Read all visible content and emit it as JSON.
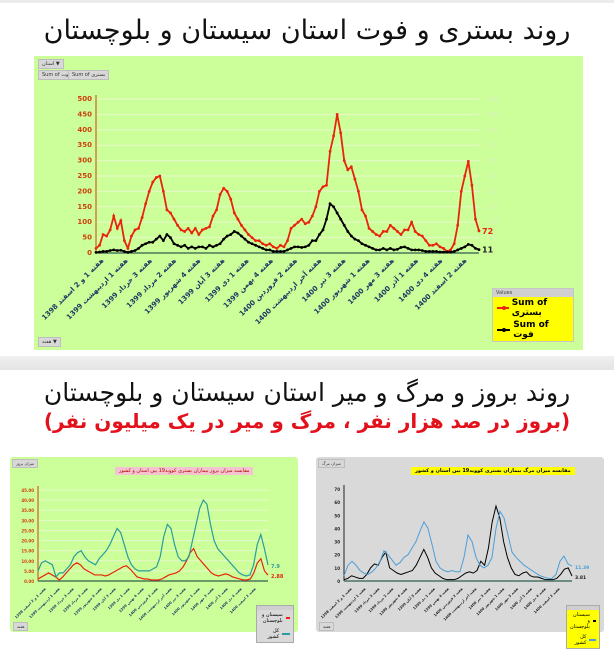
{
  "top": {
    "title": "روند بستری و فوت استان سیستان و بلوچستان",
    "filter_pill": "استان ▼ ",
    "field_pills": [
      "Sum of فوت",
      "Sum of بستری"
    ],
    "axis_pill": "هفته ▼",
    "legend": {
      "header": "Values",
      "items": [
        {
          "label": "Sum of بستری",
          "color": "#e8250c"
        },
        {
          "label": "Sum of فوت",
          "color": "#000000"
        }
      ]
    }
  },
  "bottom": {
    "title": "روند بروز و مرگ و میر استان سیستان و بلوچستان",
    "subtitle": "(بروز در صد هزار نفر ، مرگ و میر در یک میلیون نفر)",
    "left_chart": {
      "corner_pill": "میزان بروز",
      "title": "مقایسه میزان بروز بیماران بستری کووید19 بین استان و کشور",
      "footer_pill": "هفته",
      "legend": [
        {
          "label": "سیستان و بلوچستان",
          "color": "#e8250c"
        },
        {
          "label": "کل کشور",
          "color": "#2a9d9d"
        }
      ],
      "end_labels": {
        "province": "2.88",
        "country": "7.9"
      }
    },
    "right_chart": {
      "corner_pill": "میزان مرگ",
      "title": "مقایسه میزان مرگ بیماران بستری کووید19 بین استان و کشور",
      "footer_pill": "هفته",
      "legend": [
        {
          "label": "سیستان و بلوچستان",
          "color": "#000000"
        },
        {
          "label": "کل کشور",
          "color": "#4a9fd8"
        }
      ],
      "end_labels": {
        "province": "3.81",
        "country": "11.39"
      }
    }
  },
  "chart_data": [
    {
      "type": "line",
      "title": "روند بستری و فوت استان سیستان و بلوچستان",
      "xlabel": "هفته",
      "ylabel": "",
      "ylim": [
        0,
        500
      ],
      "yticks": [
        0,
        50,
        100,
        150,
        200,
        250,
        300,
        350,
        400,
        450,
        500
      ],
      "grid": true,
      "legend_position": "bottom-right",
      "categories": [
        "هفته 1 و 2 اسفند 1398",
        "هفته 1 اردیبهشت 1399",
        "هفته 3 خرداد 1399",
        "هفته 2 مرداد 1399",
        "هفته 4 شهریور 1399",
        "هفته 3 آبان 1399",
        "هفته 1 دی 1399",
        "هفته 4 بهمن 1399",
        "هفته 2 فروردین 1400",
        "هفته آخر اردیبهشت 1400",
        "هفته 3 تیر 1400",
        "هفته 1 شهریور 1400",
        "هفته 3 مهر 1400",
        "هفته 1 آذر 1400",
        "هفته 4 دی 1400",
        "هفته 2 اسفند 1400"
      ],
      "series": [
        {
          "name": "Sum of بستری",
          "color": "#e8250c",
          "values": [
            15,
            25,
            60,
            55,
            75,
            120,
            80,
            105,
            40,
            15,
            55,
            75,
            80,
            115,
            160,
            200,
            230,
            245,
            250,
            200,
            140,
            130,
            110,
            90,
            75,
            70,
            80,
            65,
            80,
            60,
            75,
            80,
            85,
            120,
            140,
            190,
            210,
            200,
            175,
            130,
            110,
            90,
            75,
            60,
            50,
            40,
            40,
            30,
            25,
            30,
            20,
            15,
            25,
            20,
            40,
            80,
            90,
            100,
            110,
            95,
            100,
            120,
            150,
            200,
            215,
            220,
            330,
            380,
            450,
            390,
            300,
            270,
            280,
            240,
            200,
            140,
            120,
            80,
            70,
            60,
            55,
            70,
            70,
            90,
            80,
            70,
            60,
            75,
            75,
            100,
            70,
            60,
            55,
            40,
            25,
            25,
            30,
            20,
            15,
            5,
            10,
            30,
            90,
            200,
            250,
            298,
            220,
            110,
            72
          ]
        },
        {
          "name": "Sum of فوت",
          "color": "#000000",
          "values": [
            2,
            3,
            5,
            5,
            8,
            10,
            8,
            9,
            5,
            2,
            5,
            8,
            15,
            25,
            30,
            35,
            35,
            45,
            55,
            40,
            60,
            50,
            30,
            25,
            20,
            25,
            15,
            20,
            15,
            20,
            20,
            15,
            25,
            20,
            25,
            30,
            45,
            55,
            60,
            70,
            65,
            55,
            45,
            35,
            30,
            25,
            20,
            15,
            10,
            10,
            5,
            5,
            5,
            5,
            10,
            15,
            20,
            20,
            18,
            20,
            25,
            40,
            40,
            60,
            75,
            110,
            160,
            150,
            130,
            110,
            90,
            70,
            55,
            45,
            40,
            30,
            25,
            20,
            15,
            10,
            10,
            15,
            10,
            15,
            10,
            12,
            18,
            20,
            15,
            10,
            10,
            10,
            8,
            5,
            5,
            5,
            5,
            3,
            3,
            3,
            3,
            5,
            10,
            15,
            20,
            28,
            25,
            15,
            11
          ]
        }
      ],
      "annotations": [
        {
          "text": "72",
          "series": "Sum of بستری"
        },
        {
          "text": "11",
          "series": "Sum of فوت"
        }
      ]
    },
    {
      "type": "line",
      "title": "مقایسه میزان بروز بیماران بستری کووید19 بین استان و کشور",
      "ylim": [
        0,
        45
      ],
      "yticks": [
        "0.00",
        "5.00",
        "10.00",
        "15.00",
        "20.00",
        "25.00",
        "30.00",
        "35.00",
        "40.00",
        "45.00"
      ],
      "grid": true,
      "legend_position": "bottom-right",
      "series": [
        {
          "name": "سیستان و بلوچستان",
          "color": "#e8250c",
          "values": [
            1,
            2,
            3,
            4,
            3,
            2,
            0.5,
            2,
            4,
            6,
            8,
            9,
            8,
            6,
            5,
            4,
            3,
            3,
            3,
            2.5,
            3,
            4,
            5,
            6,
            7,
            7.5,
            6,
            4,
            2,
            1.5,
            1,
            1,
            0.5,
            0.5,
            0.5,
            1,
            2,
            3,
            3.5,
            4,
            5,
            7,
            10,
            14,
            16,
            12,
            10,
            8,
            6,
            4,
            3,
            2.5,
            3,
            3.5,
            3,
            2,
            1.5,
            1,
            0.5,
            0.5,
            1,
            4,
            9,
            11,
            5,
            2.88
          ]
        },
        {
          "name": "کل کشور",
          "color": "#2a9d9d",
          "values": [
            5,
            9,
            10,
            9,
            8,
            2,
            4,
            4,
            6,
            8,
            12,
            14,
            15,
            12,
            10,
            9,
            8,
            11,
            13,
            15,
            18,
            22,
            26,
            24,
            18,
            12,
            8,
            6,
            5,
            5,
            5,
            5,
            6,
            7,
            12,
            22,
            28,
            26,
            18,
            12,
            10,
            10,
            12,
            20,
            28,
            36,
            40,
            38,
            28,
            20,
            16,
            14,
            12,
            10,
            8,
            6,
            4,
            3,
            2.5,
            3,
            8,
            18,
            23,
            16,
            7.9
          ]
        }
      ],
      "annotations": [
        {
          "text": "2.88"
        },
        {
          "text": "7.9"
        }
      ]
    },
    {
      "type": "line",
      "title": "مقایسه میزان مرگ بیماران بستری کووید19 بین استان و کشور",
      "ylim": [
        0,
        70
      ],
      "yticks": [
        0,
        10,
        20,
        30,
        40,
        50,
        60,
        70
      ],
      "grid": false,
      "legend_position": "bottom-right",
      "series": [
        {
          "name": "سیستان و بلوچستان",
          "color": "#000000",
          "values": [
            1,
            2,
            4,
            3,
            2,
            2,
            5,
            10,
            13,
            12,
            18,
            22,
            10,
            8,
            6,
            5,
            6,
            7,
            8,
            12,
            18,
            24,
            18,
            10,
            6,
            4,
            2,
            1,
            1,
            1,
            2,
            4,
            6,
            7,
            6,
            8,
            15,
            12,
            25,
            45,
            57,
            48,
            30,
            18,
            10,
            5,
            4,
            6,
            7,
            4,
            3,
            3,
            2,
            1,
            1,
            1,
            2,
            5,
            9,
            10,
            3.81
          ]
        },
        {
          "name": "کل کشور",
          "color": "#4a9fd8",
          "values": [
            4,
            12,
            15,
            12,
            8,
            6,
            5,
            7,
            10,
            15,
            23,
            20,
            16,
            12,
            14,
            18,
            20,
            25,
            30,
            38,
            45,
            40,
            28,
            15,
            10,
            8,
            7,
            8,
            7,
            7,
            18,
            35,
            30,
            18,
            12,
            10,
            12,
            18,
            40,
            53,
            48,
            35,
            22,
            18,
            15,
            12,
            10,
            8,
            6,
            4,
            3,
            2,
            2,
            5,
            15,
            19,
            13,
            11.39
          ]
        }
      ],
      "annotations": [
        {
          "text": "3.81"
        },
        {
          "text": "11.39"
        }
      ]
    }
  ]
}
